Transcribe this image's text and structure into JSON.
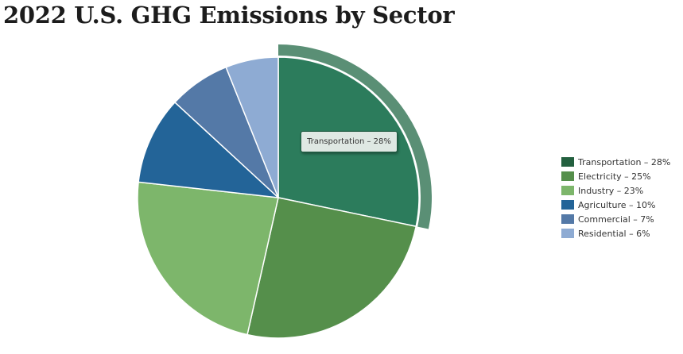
{
  "title": "2022 U.S. GHG Emissions by Sector",
  "tooltip": {
    "text": "Transportation – 28%"
  },
  "legend": {
    "items": [
      {
        "label": "Transportation – 28%",
        "color": "#23603f"
      },
      {
        "label": "Electricity – 25%",
        "color": "#558f4b"
      },
      {
        "label": "Industry – 23%",
        "color": "#7db66b"
      },
      {
        "label": "Agriculture – 10%",
        "color": "#236498"
      },
      {
        "label": "Commercial – 7%",
        "color": "#5479a7"
      },
      {
        "label": "Residential – 6%",
        "color": "#8eabd3"
      }
    ]
  },
  "chart_data": {
    "type": "pie",
    "title": "2022 U.S. GHG Emissions by Sector",
    "categories": [
      "Transportation",
      "Electricity",
      "Industry",
      "Agriculture",
      "Commercial",
      "Residential"
    ],
    "values": [
      28,
      25,
      23,
      10,
      7,
      6
    ],
    "unit": "%",
    "colors": [
      "#2c7c5c",
      "#558f4b",
      "#7db66b",
      "#236498",
      "#5479a7",
      "#8eabd3"
    ],
    "highlighted": "Transportation",
    "start_angle_deg": 0,
    "direction": "clockwise",
    "legend_position": "right"
  }
}
